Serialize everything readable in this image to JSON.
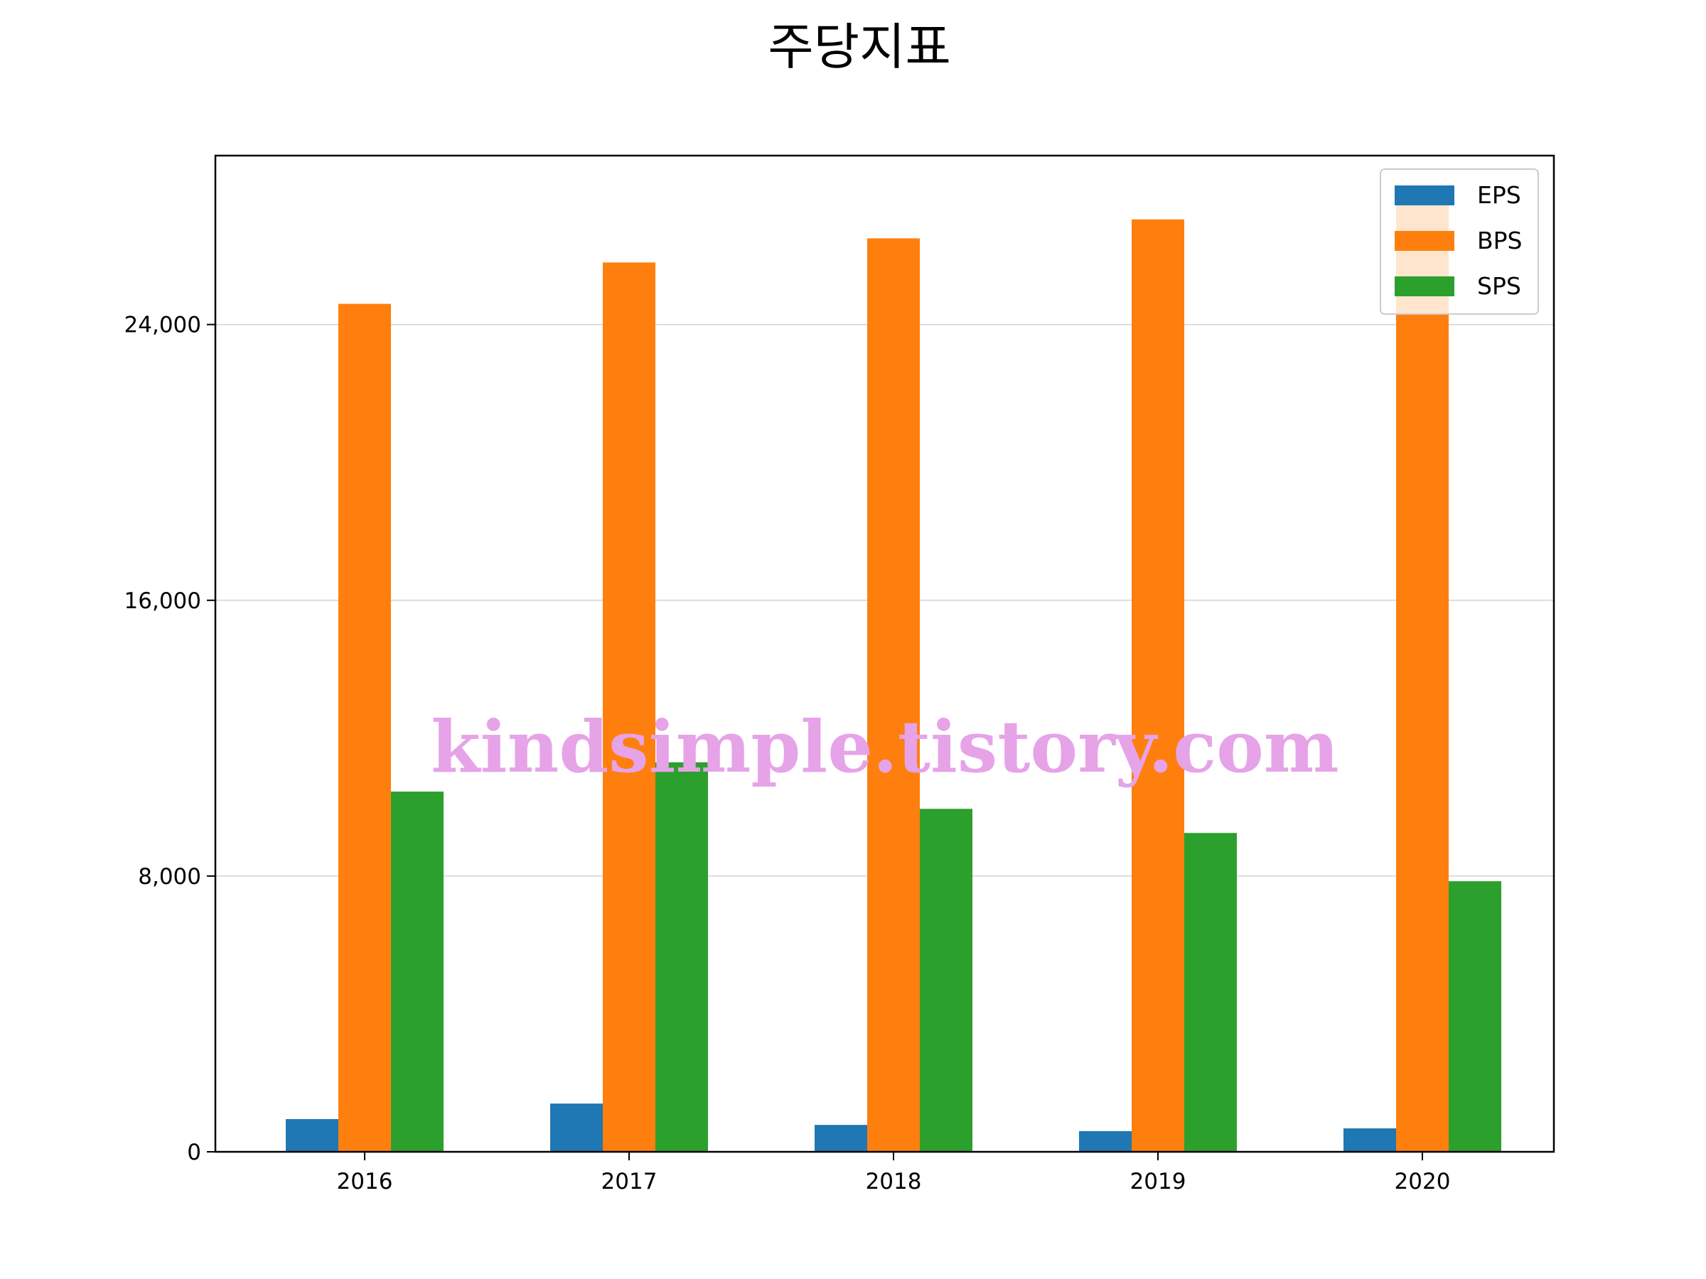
{
  "colors": {
    "eps": "#1f77b4",
    "bps": "#ff7f0e",
    "sps": "#2ca02c",
    "grid": "#d3d3d3",
    "watermark": "#e6a3e8"
  },
  "watermark": "kindsimple.tistory.com",
  "chart_data": {
    "type": "bar",
    "title": "주당지표",
    "xlabel": "",
    "ylabel": "",
    "categories": [
      "2016",
      "2017",
      "2018",
      "2019",
      "2020"
    ],
    "series": [
      {
        "name": "EPS",
        "values": [
          950,
          1400,
          780,
          600,
          680
        ]
      },
      {
        "name": "BPS",
        "values": [
          24600,
          25800,
          26500,
          27050,
          27600
        ]
      },
      {
        "name": "SPS",
        "values": [
          10450,
          11300,
          9950,
          9250,
          7850
        ]
      }
    ],
    "ylim": [
      0,
      28900
    ],
    "yticks": [
      0,
      8000,
      16000,
      24000
    ],
    "ytick_labels": [
      "0",
      "8,000",
      "16,000",
      "24,000"
    ],
    "grid": "y",
    "legend": "top-right"
  }
}
